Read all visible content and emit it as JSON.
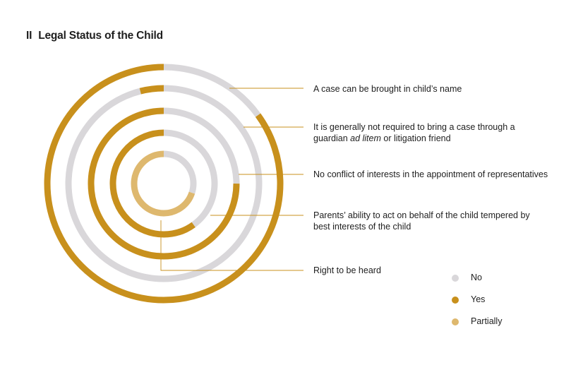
{
  "title": {
    "number": "II",
    "text": "Legal Status of the Child"
  },
  "colors": {
    "no": "#d9d7da",
    "yes": "#c8901c",
    "partially": "#deb86e",
    "leader": "#c8901c"
  },
  "legend": [
    {
      "key": "no",
      "label": "No"
    },
    {
      "key": "yes",
      "label": "Yes"
    },
    {
      "key": "partially",
      "label": "Partially"
    }
  ],
  "chart_data": {
    "type": "radial-bar",
    "rings": [
      {
        "label_html": "A case can be brought in child’s name",
        "segments": [
          {
            "key": "no",
            "fraction": 0.15
          },
          {
            "key": "yes",
            "fraction": 0.85
          }
        ]
      },
      {
        "label_html": "It is generally not required to bring a case through a<br>guardian <i>ad litem</i> or litigation friend",
        "segments": [
          {
            "key": "no",
            "fraction": 0.96
          },
          {
            "key": "yes",
            "fraction": 0.04
          }
        ]
      },
      {
        "label_html": "No conflict of interests in the appointment of representatives",
        "segments": [
          {
            "key": "no",
            "fraction": 0.25
          },
          {
            "key": "yes",
            "fraction": 0.75
          }
        ]
      },
      {
        "label_html": "Parents’ ability to act on behalf of the child tempered by<br>best interests of the child",
        "segments": [
          {
            "key": "no",
            "fraction": 0.4
          },
          {
            "key": "yes",
            "fraction": 0.6
          }
        ]
      },
      {
        "label_html": "Right to be heard",
        "segments": [
          {
            "key": "no",
            "fraction": 0.3
          },
          {
            "key": "partially",
            "fraction": 0.7
          }
        ]
      }
    ]
  }
}
